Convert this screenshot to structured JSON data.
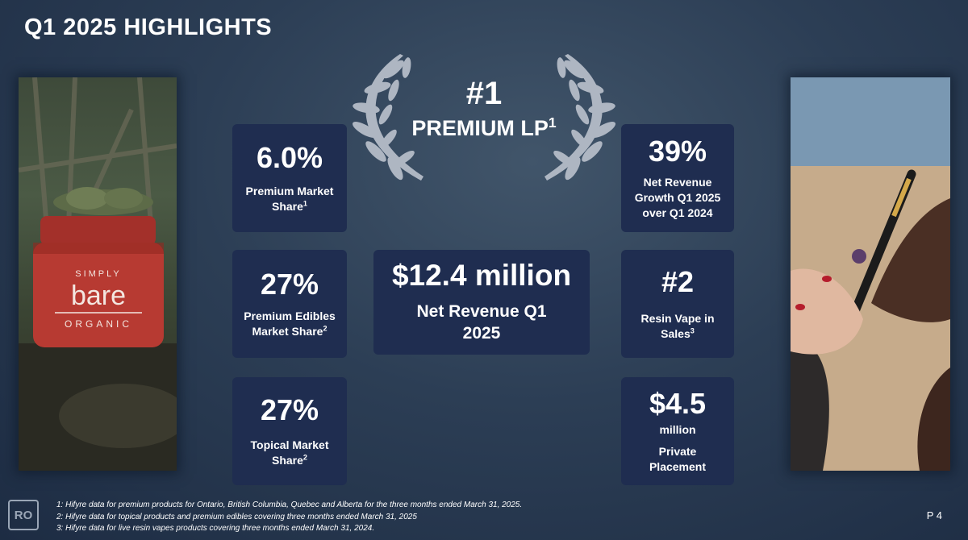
{
  "slide": {
    "title": "Q1 2025 HIGHLIGHTS",
    "page_number": "P 4"
  },
  "award": {
    "rank": "#1",
    "label": "PREMIUM LP",
    "footnote_ref": "1"
  },
  "stats_left": [
    {
      "value": "6.0%",
      "label": "Premium Market Share",
      "footnote_ref": "1"
    },
    {
      "value": "27%",
      "label": "Premium Edibles Market Share",
      "footnote_ref": "2"
    },
    {
      "value": "27%",
      "label": "Topical Market Share",
      "footnote_ref": "2"
    }
  ],
  "stat_center": {
    "value": "$12.4 million",
    "label": "Net Revenue Q1 2025"
  },
  "stats_right": [
    {
      "value": "39%",
      "label": "Net Revenue Growth Q1 2025 over Q1 2024"
    },
    {
      "value": "#2",
      "label": "Resin Vape in Sales",
      "footnote_ref": "3"
    },
    {
      "value": "$4.5",
      "unit": "million",
      "label": "Private Placement"
    }
  ],
  "footnotes": [
    "1: Hifyre data for premium products for Ontario, British Columbia, Quebec and Alberta for the three months ended March 31, 2025.",
    "2: Hifyre data for topical products and premium edibles covering three months ended  March 31, 2025",
    "3: Hifyre data for live resin vapes products covering three months ended March 31, 2024."
  ],
  "logo_text": "RO",
  "images": {
    "left": "simply-bare-organic-jar-photo",
    "right": "resin-vape-pen-hands-photo"
  },
  "colors": {
    "background": "#2c3e55",
    "box": "#1f2d50",
    "laurel": "#aeb6c2",
    "text": "#ffffff"
  }
}
